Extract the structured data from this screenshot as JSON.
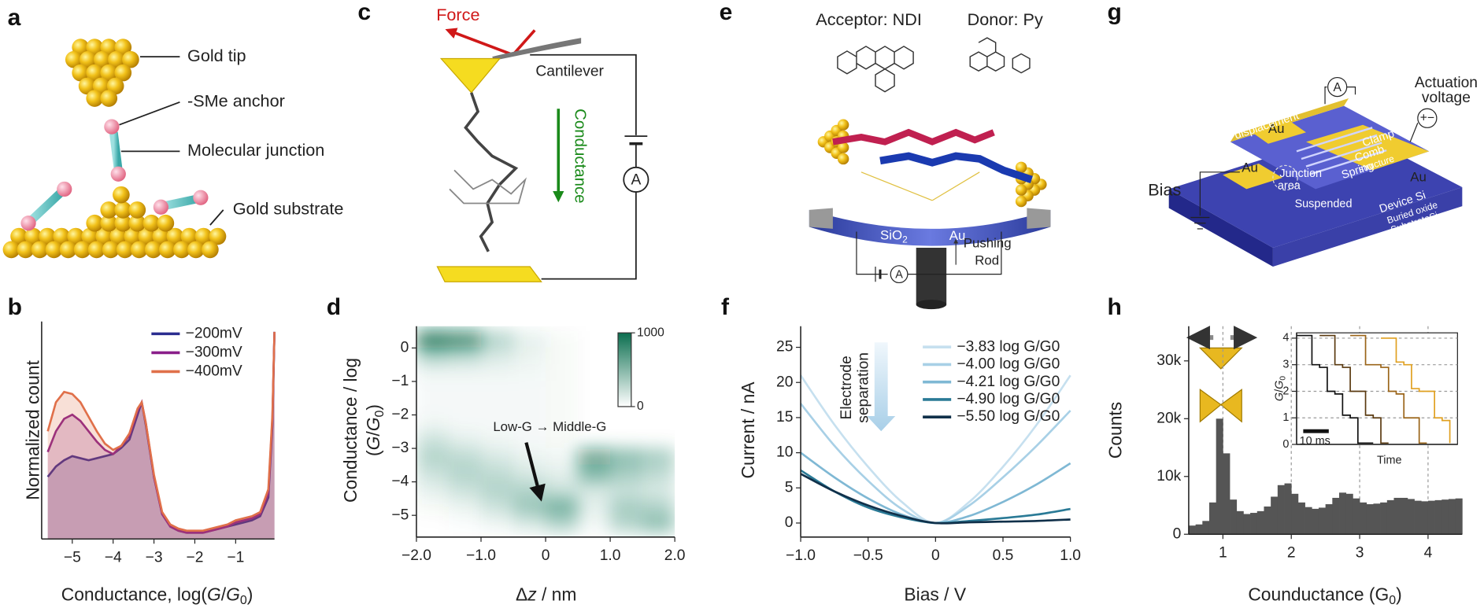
{
  "panel_labels": [
    "a",
    "b",
    "c",
    "d",
    "e",
    "f",
    "g",
    "h"
  ],
  "diagrams": {
    "a": {
      "gold_tip": "Gold tip",
      "anchor": "-SMe anchor",
      "junction": "Molecular junction",
      "substrate": "Gold substrate"
    },
    "c": {
      "force": "Force",
      "cantilever": "Cantilever",
      "conductance": "Conductance",
      "ammeter": "A"
    },
    "e": {
      "acceptor": "Acceptor: NDI",
      "donor": "Donor: Py",
      "sio2": [
        {
          "text": "SiO"
        },
        {
          "text": "2"
        }
      ],
      "au": "Au",
      "rod": [
        "Pushing",
        "Rod"
      ],
      "ammeter": "A"
    },
    "g": {
      "actuation": [
        "Actuation",
        "voltage"
      ],
      "bias": "Bias",
      "ammeter": "A",
      "au": [
        "Au",
        "Au",
        "Au"
      ],
      "comb_displacement": [
        "Comb",
        "displacement"
      ],
      "junction": [
        "Junction",
        "area"
      ],
      "suspended": "Suspended",
      "device": "Device Si",
      "oxide": "Buried oxide",
      "substrate": "SubstrateSi",
      "spring": "Spring",
      "comb_structure": [
        "Comb",
        "structure"
      ],
      "clamp": "Clamp"
    }
  },
  "chart_data": [
    {
      "type": "line",
      "fill_under": true,
      "xlabel": [
        [
          {
            "text": "Conductance, log("
          },
          {
            "text": "G",
            "italic": true
          },
          {
            "text": "/"
          },
          {
            "text": "G",
            "italic": true
          },
          {
            "text": "0",
            "sub": true
          },
          {
            "text": ")"
          }
        ]
      ],
      "ylabel": [
        [
          {
            "text": "Normalized count"
          }
        ]
      ],
      "x": [
        -5.6,
        -5.4,
        -5.2,
        -5.0,
        -4.8,
        -4.6,
        -4.4,
        -4.2,
        -4.0,
        -3.8,
        -3.6,
        -3.4,
        -3.3,
        -3.2,
        -3.0,
        -2.8,
        -2.6,
        -2.4,
        -2.2,
        -2.0,
        -1.8,
        -1.6,
        -1.4,
        -1.2,
        -1.0,
        -0.8,
        -0.6,
        -0.4,
        -0.2,
        -0.1,
        -0.05
      ],
      "series": [
        {
          "name": "−200mV",
          "color": "#2b2d8f",
          "values": [
            0.3,
            0.35,
            0.38,
            0.4,
            0.39,
            0.38,
            0.39,
            0.4,
            0.41,
            0.44,
            0.48,
            0.6,
            0.66,
            0.55,
            0.3,
            0.12,
            0.06,
            0.04,
            0.03,
            0.03,
            0.03,
            0.04,
            0.05,
            0.06,
            0.07,
            0.08,
            0.09,
            0.11,
            0.2,
            0.55,
            1.0
          ]
        },
        {
          "name": "−300mV",
          "color": "#8a1f8a",
          "values": [
            0.42,
            0.52,
            0.58,
            0.6,
            0.57,
            0.52,
            0.47,
            0.43,
            0.41,
            0.45,
            0.5,
            0.62,
            0.66,
            0.56,
            0.3,
            0.12,
            0.06,
            0.04,
            0.03,
            0.03,
            0.03,
            0.04,
            0.05,
            0.06,
            0.08,
            0.09,
            0.1,
            0.12,
            0.22,
            0.58,
            1.0
          ]
        },
        {
          "name": "−400mV",
          "color": "#e0704a",
          "values": [
            0.52,
            0.66,
            0.71,
            0.7,
            0.66,
            0.59,
            0.52,
            0.46,
            0.43,
            0.45,
            0.51,
            0.63,
            0.66,
            0.56,
            0.31,
            0.13,
            0.07,
            0.05,
            0.04,
            0.04,
            0.04,
            0.05,
            0.06,
            0.07,
            0.09,
            0.1,
            0.11,
            0.13,
            0.24,
            0.6,
            1.0
          ]
        }
      ],
      "xlim": [
        -5.75,
        -0.05
      ],
      "xticks": [
        {
          "value": -5,
          "label": "−5"
        },
        {
          "value": -4,
          "label": "−4"
        },
        {
          "value": -3,
          "label": "−3"
        },
        {
          "value": -2,
          "label": "−2"
        },
        {
          "value": -1,
          "label": "−1"
        }
      ],
      "ylim": [
        0,
        1.05
      ],
      "legend": "upper right"
    },
    {
      "type": "heatmap",
      "xlabel": [
        [
          {
            "text": "Δ"
          },
          {
            "text": "z",
            "italic": true
          },
          {
            "text": " / nm"
          }
        ]
      ],
      "ylabel": [
        [
          {
            "text": "Conductance / log"
          }
        ],
        [
          {
            "text": "("
          },
          {
            "text": "G",
            "italic": true
          },
          {
            "text": "/"
          },
          {
            "text": "G",
            "italic": true
          },
          {
            "text": "0",
            "sub": true
          },
          {
            "text": ")"
          }
        ]
      ],
      "annotation": "Low-G → Middle-G",
      "x_edges": [
        -2,
        -1.5,
        -1,
        -0.5,
        0,
        0.5,
        1,
        1.5,
        2
      ],
      "y_edges": [
        0.5,
        0,
        -0.5,
        -1,
        -1.5,
        -2,
        -2.5,
        -3,
        -3.5,
        -4,
        -4.5,
        -5,
        -5.5
      ],
      "z": [
        [
          900,
          800,
          300,
          100,
          30,
          0,
          0,
          0
        ],
        [
          300,
          250,
          150,
          80,
          30,
          0,
          0,
          0
        ],
        [
          60,
          60,
          60,
          50,
          30,
          0,
          0,
          0
        ],
        [
          40,
          40,
          40,
          40,
          30,
          0,
          0,
          0
        ],
        [
          40,
          40,
          40,
          40,
          30,
          0,
          0,
          0
        ],
        [
          60,
          40,
          40,
          40,
          30,
          0,
          0,
          0
        ],
        [
          200,
          100,
          60,
          40,
          30,
          0,
          0,
          0
        ],
        [
          300,
          250,
          150,
          80,
          50,
          600,
          450,
          350
        ],
        [
          200,
          300,
          250,
          150,
          100,
          500,
          350,
          250
        ],
        [
          100,
          200,
          300,
          300,
          200,
          150,
          200,
          150
        ],
        [
          30,
          80,
          200,
          400,
          550,
          100,
          350,
          300
        ],
        [
          0,
          20,
          60,
          150,
          300,
          50,
          300,
          450
        ]
      ],
      "color": "#0b6e4f",
      "zlim": [
        0,
        1000
      ],
      "zticks": [
        0,
        1000
      ],
      "xlim": [
        -2,
        2
      ],
      "xticks": [
        {
          "value": -2,
          "label": "−2.0"
        },
        {
          "value": -1,
          "label": "−1.0"
        },
        0,
        {
          "value": 1,
          "label": "1.0"
        },
        {
          "value": 2,
          "label": "2.0"
        }
      ],
      "ylim": [
        -5.65,
        0.65
      ],
      "yticks": [
        0,
        {
          "value": -1,
          "label": "−1"
        },
        {
          "value": -2,
          "label": "−2"
        },
        {
          "value": -3,
          "label": "−3"
        },
        {
          "value": -4,
          "label": "−4"
        },
        {
          "value": -5,
          "label": "−5"
        }
      ]
    },
    {
      "type": "line",
      "xlabel": [
        [
          {
            "text": "Bias / V"
          }
        ]
      ],
      "ylabel": [
        [
          {
            "text": "Current / nA"
          }
        ]
      ],
      "annotation": [
        "Electrode",
        "separation"
      ],
      "x": [
        -1,
        -0.75,
        -0.5,
        -0.25,
        0,
        0.25,
        0.5,
        0.75,
        1
      ],
      "series": [
        {
          "name": "−3.83 log G/G0",
          "color": "#c6e0ef",
          "values": [
            21,
            14,
            8,
            3,
            0,
            3,
            8,
            14,
            21
          ]
        },
        {
          "name": "−4.00 log G/G0",
          "color": "#a8d0e6",
          "values": [
            17,
            11,
            6,
            2,
            0,
            2.5,
            6.5,
            11,
            16
          ]
        },
        {
          "name": "−4.21 log G/G0",
          "color": "#7fb8d4",
          "values": [
            10,
            6.5,
            3.5,
            1.2,
            0,
            1,
            3,
            5.5,
            8.5
          ]
        },
        {
          "name": "−4.90 log G/G0",
          "color": "#2a7a96",
          "values": [
            7.5,
            4.5,
            2.2,
            0.8,
            0,
            0.3,
            0.7,
            1.2,
            2
          ]
        },
        {
          "name": "−5.50 log G/G0",
          "color": "#10304a",
          "values": [
            7,
            4.5,
            2.5,
            1,
            0,
            0.1,
            0.2,
            0.3,
            0.5
          ]
        }
      ],
      "xlim": [
        -1,
        1
      ],
      "xticks": [
        {
          "value": -1,
          "label": "−1.0"
        },
        {
          "value": -0.5,
          "label": "−0.5"
        },
        0,
        0.5,
        {
          "value": 1,
          "label": "1.0"
        }
      ],
      "ylim": [
        -2,
        28
      ],
      "yticks": [
        0,
        5,
        10,
        15,
        20,
        25
      ],
      "legend": "upper right"
    },
    {
      "type": "histogram",
      "xlabel": [
        [
          {
            "text": "Counductance (G"
          },
          {
            "text": "0",
            "sub": true
          },
          {
            "text": ")"
          }
        ]
      ],
      "ylabel": [
        [
          {
            "text": "Counts"
          }
        ]
      ],
      "bins": [
        0.5,
        0.6,
        0.7,
        0.8,
        0.9,
        1.0,
        1.1,
        1.2,
        1.3,
        1.4,
        1.5,
        1.6,
        1.7,
        1.8,
        1.9,
        2.0,
        2.1,
        2.2,
        2.3,
        2.4,
        2.5,
        2.6,
        2.7,
        2.8,
        2.9,
        3.0,
        3.1,
        3.2,
        3.3,
        3.4,
        3.5,
        3.6,
        3.7,
        3.8,
        3.9,
        4.0,
        4.1,
        4.2,
        4.3,
        4.4,
        4.5
      ],
      "counts": [
        1500,
        1700,
        2300,
        5500,
        20000,
        14000,
        6000,
        4000,
        3500,
        3700,
        4000,
        4800,
        6500,
        8500,
        8800,
        7000,
        5500,
        4700,
        4400,
        4600,
        5200,
        6300,
        7200,
        7000,
        6200,
        5500,
        5200,
        5300,
        5500,
        5900,
        6300,
        6300,
        6100,
        5800,
        5700,
        5800,
        5900,
        6000,
        6100,
        6200
      ],
      "color": "#555555",
      "grid": "x",
      "xlim": [
        0.5,
        4.5
      ],
      "xticks": [
        1,
        2,
        3,
        4
      ],
      "ylim": [
        0,
        36000
      ],
      "yticks": [
        0,
        {
          "value": 10000,
          "label": "10k"
        },
        {
          "value": 20000,
          "label": "20k"
        },
        {
          "value": 30000,
          "label": "30k"
        }
      ]
    },
    {
      "type": "line",
      "step": true,
      "xlabel": [
        [
          {
            "text": "Time"
          }
        ]
      ],
      "ylabel": [
        [
          {
            "text": "G",
            "italic": true
          },
          {
            "text": "/"
          },
          {
            "text": "G",
            "italic": true
          },
          {
            "text": "0",
            "sub": true
          }
        ]
      ],
      "x": [
        0,
        3,
        6,
        9,
        12,
        15,
        18,
        21,
        24,
        27,
        30,
        33,
        36,
        39,
        42,
        45,
        48,
        51,
        54,
        57,
        60
      ],
      "series": [
        {
          "color": "#111111",
          "values": [
            4.1,
            4.1,
            3.0,
            2.9,
            2.0,
            1.9,
            1.1,
            1.0,
            0.05,
            0.05,
            0.05,
            null,
            null,
            null,
            null,
            null,
            null,
            null,
            null,
            null,
            null
          ]
        },
        {
          "color": "#5a3a10",
          "values": [
            null,
            null,
            null,
            4.1,
            4.1,
            3.0,
            2.9,
            2.0,
            2.0,
            1.1,
            1.0,
            0.05,
            0.05,
            null,
            null,
            null,
            null,
            null,
            null,
            null,
            null
          ]
        },
        {
          "color": "#9a6418",
          "values": [
            null,
            null,
            null,
            null,
            null,
            null,
            null,
            4.1,
            4.1,
            3.0,
            3.0,
            2.9,
            2.0,
            1.9,
            1.0,
            1.0,
            0.05,
            0.05,
            null,
            null,
            null
          ]
        },
        {
          "color": "#e0a020",
          "values": [
            null,
            null,
            null,
            null,
            null,
            null,
            null,
            null,
            null,
            null,
            null,
            4.0,
            4.0,
            3.1,
            3.0,
            2.1,
            2.0,
            2.0,
            1.0,
            0.9,
            0.05
          ]
        }
      ],
      "scale_bar": {
        "value": 10,
        "label": "10 ms"
      },
      "grid": "y",
      "xlim": [
        0,
        63
      ],
      "ylim": [
        0,
        4.2
      ],
      "yticks": [
        0,
        1,
        2,
        3,
        4
      ]
    }
  ]
}
